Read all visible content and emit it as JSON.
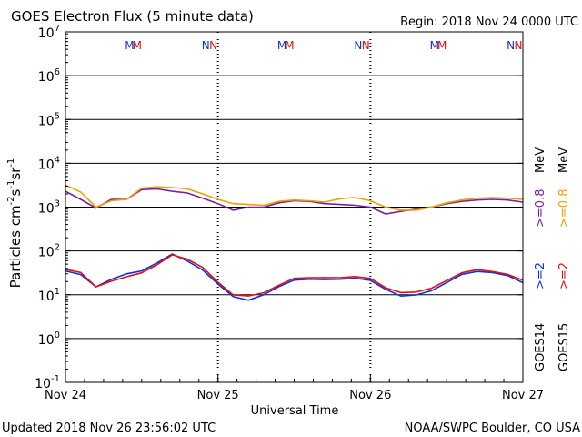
{
  "page": {
    "title": "GOES Electron Flux (5 minute data)",
    "begin": "Begin: 2018 Nov 24 0000 UTC",
    "updated": "Updated 2018 Nov 26 23:56:02 UTC",
    "credit": "NOAA/SWPC Boulder, CO USA"
  },
  "colors": {
    "goes14_low": "#7a1fa0",
    "goes15_low": "#f0a000",
    "goes14_high": "#1030e0",
    "goes15_high": "#e01010",
    "axis": "#000000"
  },
  "chart_data": {
    "type": "line",
    "title": "GOES Electron Flux (5 minute data)",
    "xlabel": "Universal Time",
    "ylabel": "Particles cm^-2 s^-1 sr^-1",
    "yscale": "log",
    "ylim": [
      0.1,
      10000000
    ],
    "y_ticks": [
      {
        "value": 0.1,
        "base": "10",
        "exp": "-1"
      },
      {
        "value": 1,
        "base": "10",
        "exp": "0"
      },
      {
        "value": 10,
        "base": "10",
        "exp": "1"
      },
      {
        "value": 100,
        "base": "10",
        "exp": "2"
      },
      {
        "value": 1000,
        "base": "10",
        "exp": "3"
      },
      {
        "value": 10000,
        "base": "10",
        "exp": "4"
      },
      {
        "value": 100000,
        "base": "10",
        "exp": "5"
      },
      {
        "value": 1000000,
        "base": "10",
        "exp": "6"
      },
      {
        "value": 10000000,
        "base": "10",
        "exp": "7"
      }
    ],
    "x_ticks": [
      {
        "day": 0,
        "label": "Nov 24"
      },
      {
        "day": 1,
        "label": "Nov 25"
      },
      {
        "day": 2,
        "label": "Nov 26"
      },
      {
        "day": 3,
        "label": "Nov 27"
      }
    ],
    "xlim_days": [
      0,
      3
    ],
    "threshold": 1000,
    "grid": true,
    "markers": [
      {
        "label": "M",
        "day": 0.42,
        "series": "GOES14"
      },
      {
        "label": "M",
        "day": 0.47,
        "series": "GOES15"
      },
      {
        "label": "N",
        "day": 0.92,
        "series": "GOES14"
      },
      {
        "label": "N",
        "day": 0.97,
        "series": "GOES15"
      },
      {
        "label": "M",
        "day": 1.42,
        "series": "GOES14"
      },
      {
        "label": "M",
        "day": 1.47,
        "series": "GOES15"
      },
      {
        "label": "N",
        "day": 1.92,
        "series": "GOES14"
      },
      {
        "label": "N",
        "day": 1.97,
        "series": "GOES15"
      },
      {
        "label": "M",
        "day": 2.42,
        "series": "GOES14"
      },
      {
        "label": "M",
        "day": 2.47,
        "series": "GOES15"
      },
      {
        "label": "N",
        "day": 2.92,
        "series": "GOES14"
      },
      {
        "label": "N",
        "day": 2.97,
        "series": "GOES15"
      }
    ],
    "legend": {
      "position": "right",
      "rows": [
        {
          "goes": "GOES14",
          "low": ">=0.8",
          "high": ">=2"
        },
        {
          "goes": "GOES15",
          "low": ">=0.8",
          "high": ">=2"
        }
      ],
      "unit": "MeV"
    },
    "series": [
      {
        "name": ">=0.8 MeV",
        "satellite": "GOES14",
        "color_key": "goes14_low",
        "day": [
          0,
          0.1,
          0.2,
          0.3,
          0.4,
          0.5,
          0.6,
          0.7,
          0.8,
          0.9,
          1.0,
          1.1,
          1.2,
          1.3,
          1.4,
          1.5,
          1.6,
          1.7,
          1.8,
          1.9,
          2.0,
          2.1,
          2.2,
          2.3,
          2.4,
          2.5,
          2.6,
          2.7,
          2.8,
          2.9,
          3.0
        ],
        "values": [
          2300,
          1500,
          950,
          1500,
          1500,
          2500,
          2600,
          2300,
          2100,
          1600,
          1200,
          850,
          1000,
          1000,
          1250,
          1400,
          1350,
          1200,
          1150,
          1100,
          1000,
          700,
          800,
          900,
          1000,
          1200,
          1350,
          1450,
          1500,
          1450,
          1300
        ]
      },
      {
        "name": ">=0.8 MeV",
        "satellite": "GOES15",
        "color_key": "goes15_low",
        "day": [
          0,
          0.1,
          0.2,
          0.3,
          0.4,
          0.5,
          0.6,
          0.7,
          0.8,
          0.9,
          1.0,
          1.1,
          1.2,
          1.3,
          1.4,
          1.5,
          1.6,
          1.7,
          1.8,
          1.9,
          2.0,
          2.1,
          2.2,
          2.3,
          2.4,
          2.5,
          2.6,
          2.7,
          2.8,
          2.9,
          3.0
        ],
        "values": [
          3200,
          2200,
          1000,
          1400,
          1500,
          2700,
          2900,
          2800,
          2600,
          2000,
          1500,
          1200,
          1150,
          1100,
          1350,
          1450,
          1400,
          1300,
          1550,
          1650,
          1400,
          1000,
          850,
          850,
          1000,
          1250,
          1450,
          1600,
          1650,
          1600,
          1500
        ]
      },
      {
        "name": ">=2 MeV",
        "satellite": "GOES14",
        "color_key": "goes14_high",
        "day": [
          0,
          0.1,
          0.2,
          0.3,
          0.4,
          0.5,
          0.6,
          0.7,
          0.8,
          0.9,
          1.0,
          1.1,
          1.2,
          1.3,
          1.4,
          1.5,
          1.6,
          1.7,
          1.8,
          1.9,
          2.0,
          2.1,
          2.2,
          2.3,
          2.4,
          2.5,
          2.6,
          2.7,
          2.8,
          2.9,
          3.0
        ],
        "values": [
          35,
          25,
          13,
          22,
          35,
          42,
          55,
          75,
          50,
          35,
          20,
          11,
          8,
          9,
          13,
          20,
          25,
          27,
          25,
          22,
          18,
          12,
          10,
          12,
          14,
          18,
          25,
          30,
          33,
          33,
          22
        ]
      },
      {
        "name": ">=2 MeV",
        "satellite": "GOES15",
        "color_key": "goes15_high",
        "day": [
          0,
          0.1,
          0.2,
          0.3,
          0.4,
          0.5,
          0.6,
          0.7,
          0.8,
          0.9,
          1.0,
          1.1,
          1.2,
          1.3,
          1.4,
          1.5,
          1.6,
          1.7,
          1.8,
          1.9,
          2.0,
          2.1,
          2.2,
          2.3,
          2.4,
          2.5,
          2.6,
          2.7,
          2.8,
          2.9,
          3.0
        ],
        "values": [
          38,
          28,
          13,
          20,
          30,
          38,
          50,
          72,
          55,
          40,
          22,
          12,
          10,
          10,
          14,
          22,
          27,
          30,
          27,
          24,
          20,
          13,
          12,
          14,
          16,
          20,
          27,
          33,
          35,
          35,
          25
        ]
      }
    ]
  }
}
